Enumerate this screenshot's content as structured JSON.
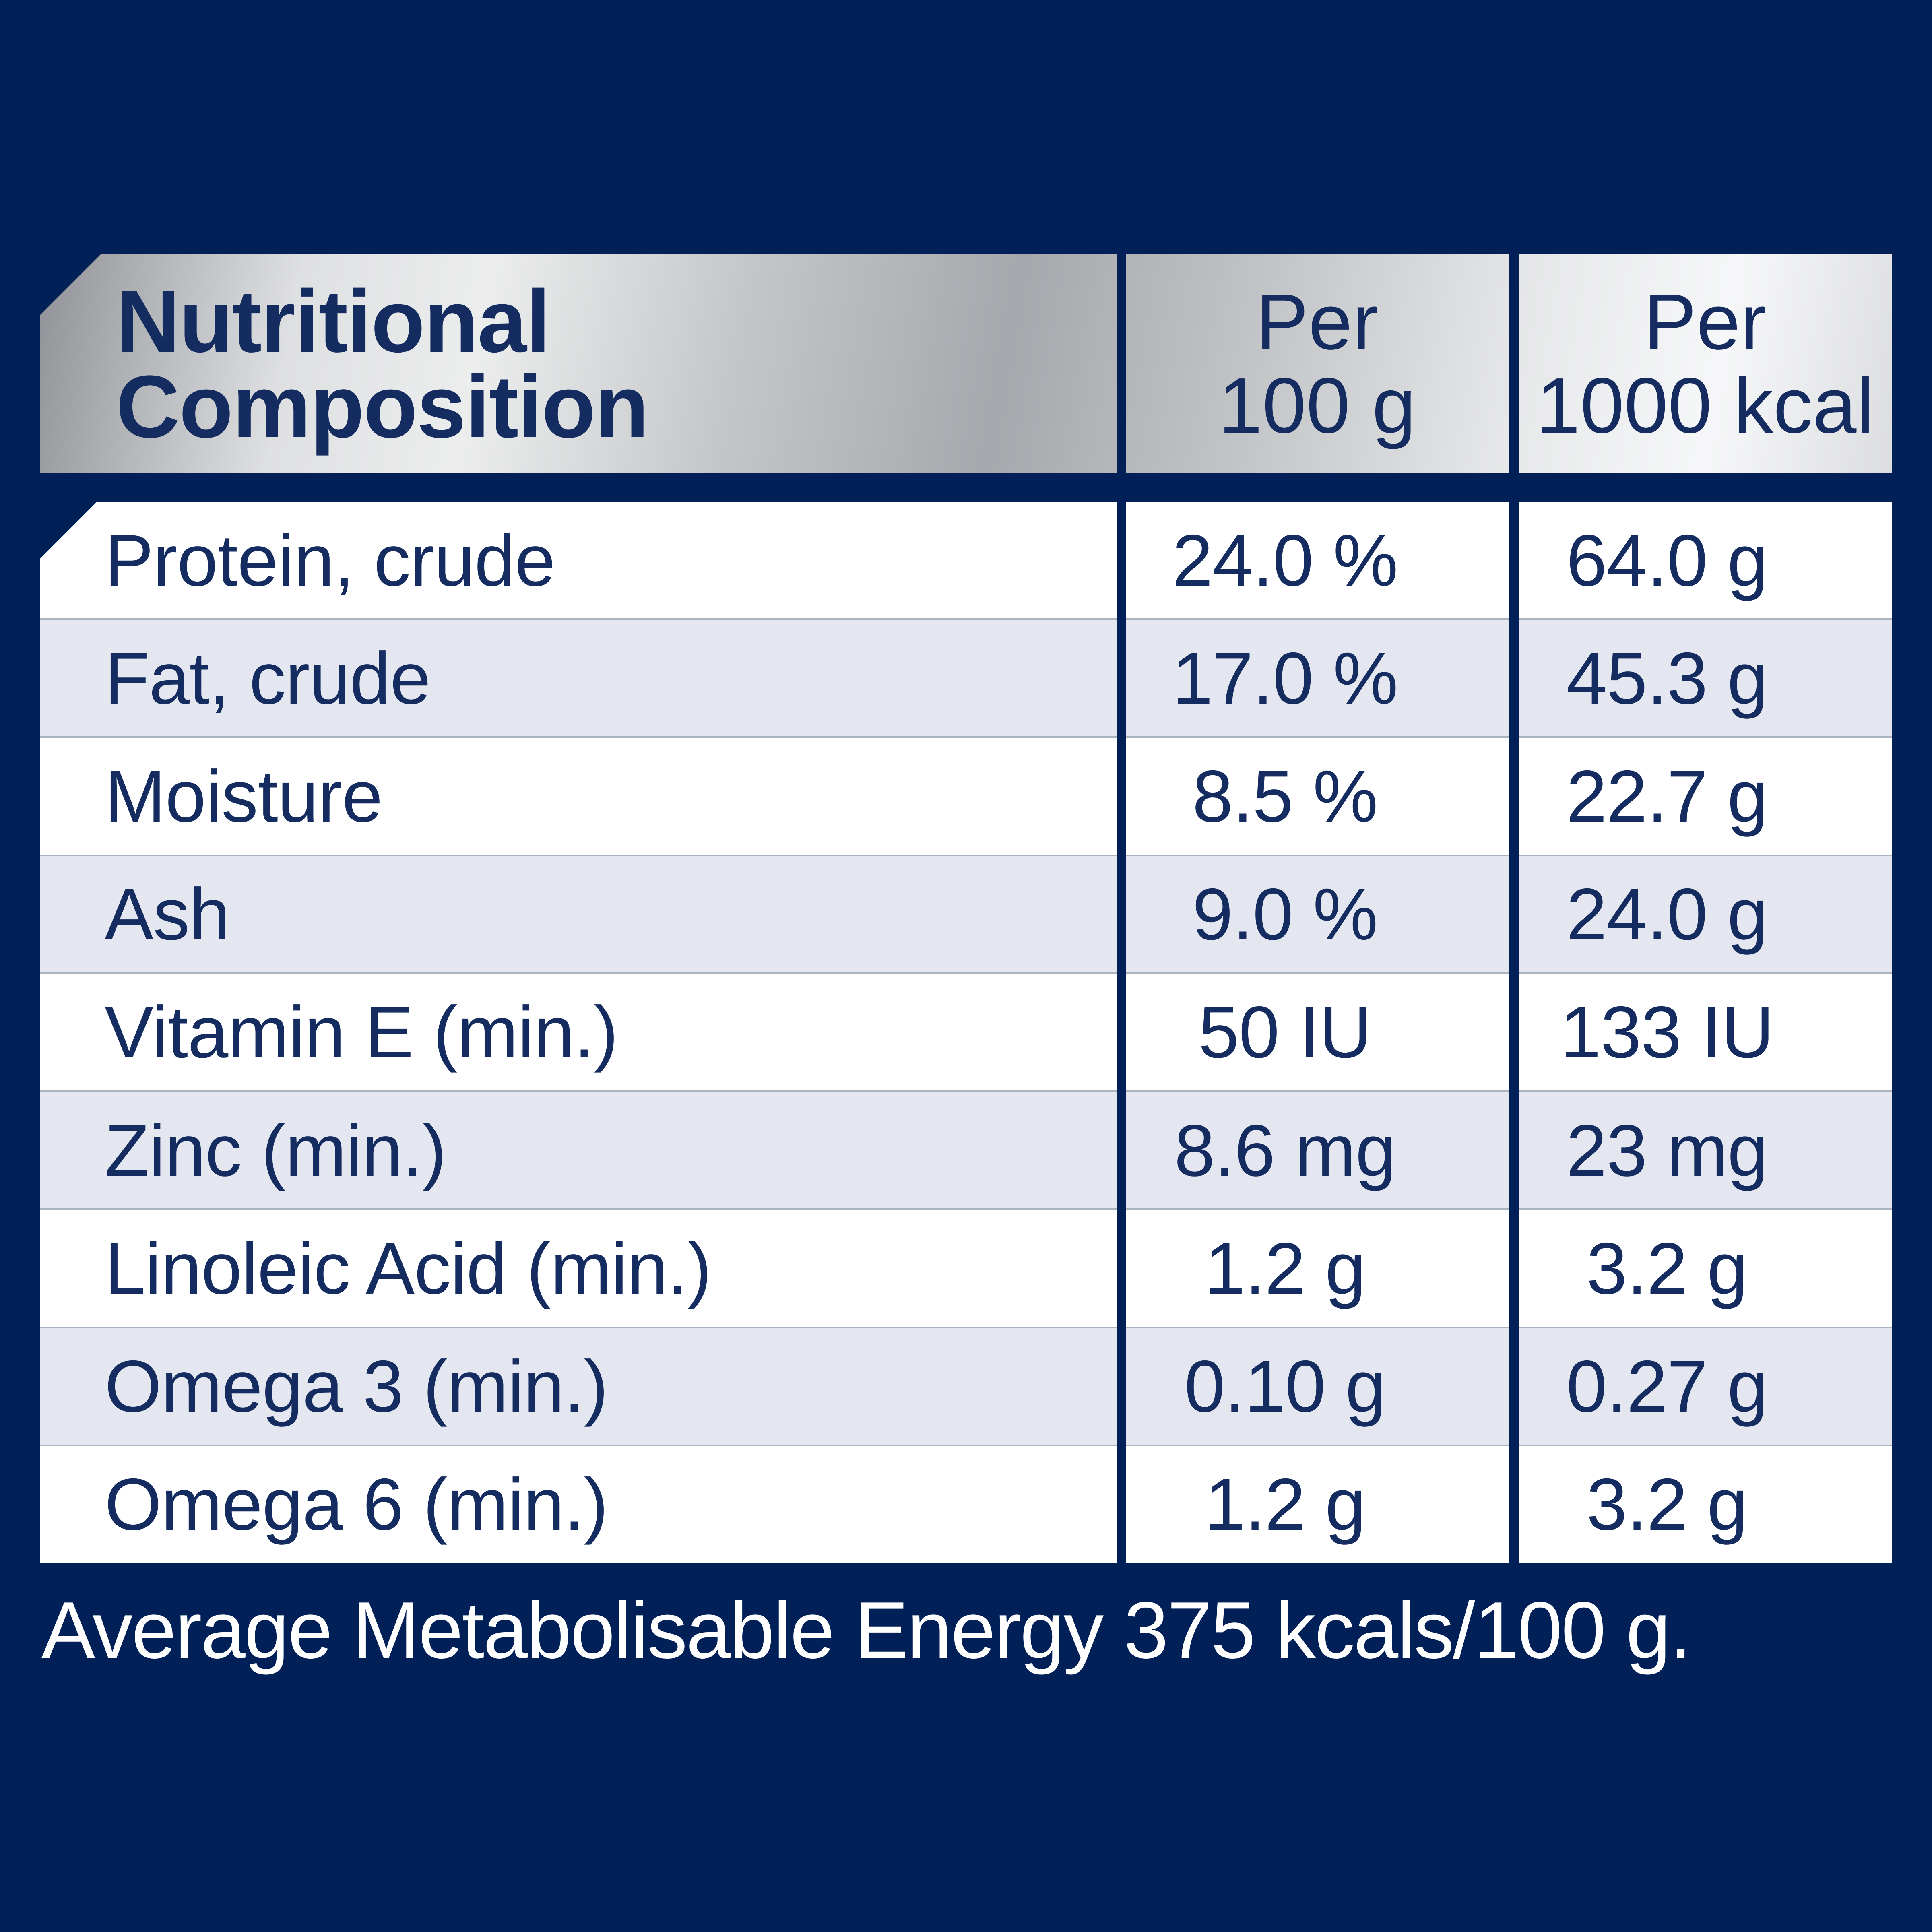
{
  "header": {
    "title_line1": "Nutritional",
    "title_line2": "Composition",
    "col2_line1": "Per",
    "col2_line2": "100 g",
    "col3_line1": "Per",
    "col3_line2": "1000 kcal"
  },
  "table": {
    "rows": [
      {
        "label": "Protein, crude",
        "per_100g": "24.0 %",
        "per_1000kcal": "64.0 g"
      },
      {
        "label": "Fat, crude",
        "per_100g": "17.0 %",
        "per_1000kcal": "45.3 g"
      },
      {
        "label": "Moisture",
        "per_100g": "8.5 %",
        "per_1000kcal": "22.7 g"
      },
      {
        "label": "Ash",
        "per_100g": "9.0 %",
        "per_1000kcal": "24.0 g"
      },
      {
        "label": "Vitamin E (min.)",
        "per_100g": "50 IU",
        "per_1000kcal": "133 IU"
      },
      {
        "label": "Zinc (min.)",
        "per_100g": "8.6 mg",
        "per_1000kcal": "23 mg"
      },
      {
        "label": "Linoleic Acid (min.)",
        "per_100g": "1.2 g",
        "per_1000kcal": "3.2 g"
      },
      {
        "label": "Omega 3 (min.)",
        "per_100g": "0.10 g",
        "per_1000kcal": "0.27 g"
      },
      {
        "label": "Omega 6 (min.)",
        "per_100g": "1.2 g",
        "per_1000kcal": "3.2 g"
      }
    ]
  },
  "footer": {
    "energy_note": "Average Metabolisable Energy 375 kcals/100 g."
  },
  "colors": {
    "background_navy": "#002057",
    "text_navy": "#152c60",
    "row_alt_blue_grey": "#e4e7ef",
    "row_white": "#ffffff",
    "row_divider": "#aab4c1",
    "silver_light": "#eceded",
    "silver_dark": "#909297",
    "footer_text": "#ffffff"
  }
}
